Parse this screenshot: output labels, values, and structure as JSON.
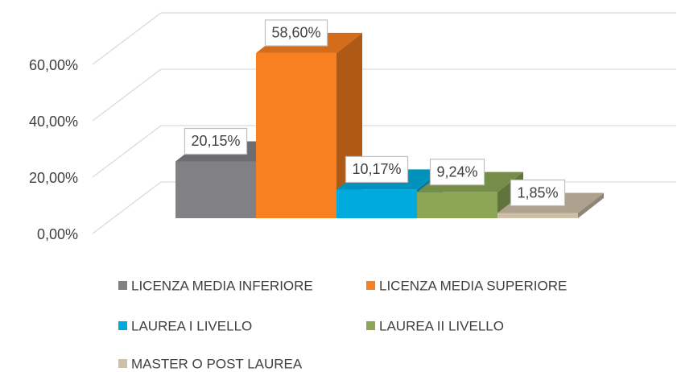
{
  "chart_data": {
    "type": "bar3d",
    "series": [
      {
        "name": "LICENZA MEDIA INFERIORE",
        "color": "#808085",
        "values": [
          20.15
        ],
        "value_labels": [
          "20,15%"
        ]
      },
      {
        "name": "LICENZA MEDIA SUPERIORE",
        "color": "#f98020",
        "values": [
          58.6
        ],
        "value_labels": [
          "58,60%"
        ]
      },
      {
        "name": "LAUREA I LIVELLO",
        "color": "#00aade",
        "values": [
          10.17
        ],
        "value_labels": [
          "10,17%"
        ]
      },
      {
        "name": "LAUREA II LIVELLO",
        "color": "#8aa656",
        "values": [
          9.24
        ],
        "value_labels": [
          "9,24%"
        ]
      },
      {
        "name": "MASTER O POST LAUREA",
        "color": "#cdbfa8",
        "values": [
          1.85
        ],
        "value_labels": [
          "1,85%"
        ]
      }
    ],
    "ylim": [
      0,
      60
    ],
    "yticks": [
      {
        "value": 0,
        "label": "0,00%"
      },
      {
        "value": 20,
        "label": "20,00%"
      },
      {
        "value": 40,
        "label": "40,00%"
      },
      {
        "value": 60,
        "label": "60,00%"
      }
    ],
    "grid": true,
    "legend": "bottom"
  }
}
